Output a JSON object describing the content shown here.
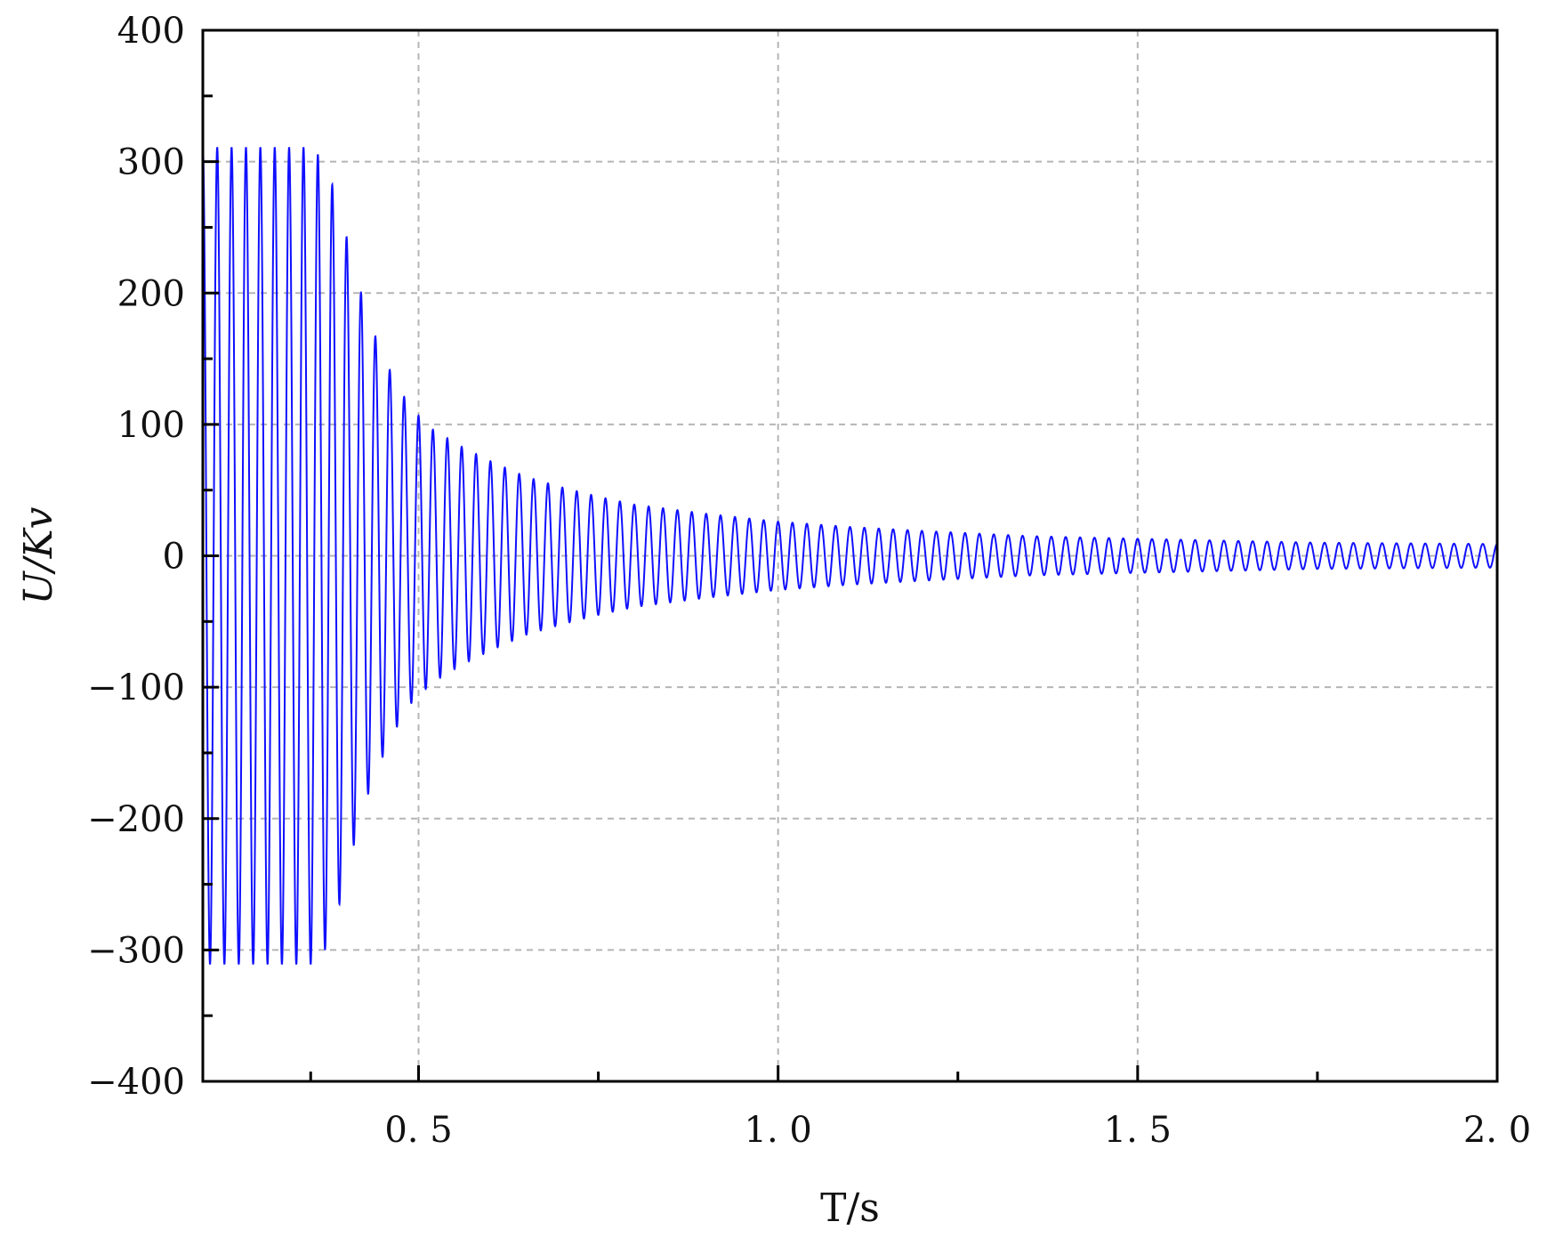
{
  "chart_data": {
    "type": "line",
    "title": "",
    "xlabel": "T/s",
    "ylabel": "U/Kv",
    "xlim": [
      0.2,
      2.0
    ],
    "ylim": [
      -400,
      400
    ],
    "grid": true,
    "colors": {
      "series": "#1010ff",
      "grid": "#b5b5b5",
      "axes": "#000000"
    },
    "x_ticks": [
      {
        "value": 0.5,
        "label": "0. 5"
      },
      {
        "value": 1.0,
        "label": "1. 0"
      },
      {
        "value": 1.5,
        "label": "1. 5"
      },
      {
        "value": 2.0,
        "label": "2. 0"
      }
    ],
    "x_minor_ticks": [
      0.35,
      0.75,
      1.25,
      1.75
    ],
    "y_ticks": [
      {
        "value": 400,
        "label": "400"
      },
      {
        "value": 300,
        "label": "300"
      },
      {
        "value": 200,
        "label": "200"
      },
      {
        "value": 100,
        "label": "100"
      },
      {
        "value": 0,
        "label": "0"
      },
      {
        "value": -100,
        "label": "−100"
      },
      {
        "value": -200,
        "label": "−200"
      },
      {
        "value": -300,
        "label": "−300"
      },
      {
        "value": -400,
        "label": "−400"
      }
    ],
    "y_minor_ticks": [
      350,
      250,
      150,
      50,
      -50,
      -150,
      -250,
      -350
    ],
    "series": [
      {
        "frequency_hz": 50,
        "peak_amplitude": 311,
        "steady_amplitude": 9,
        "envelope_points": [
          [
            0.2,
            311
          ],
          [
            0.35,
            311
          ],
          [
            0.37,
            300
          ],
          [
            0.39,
            265
          ],
          [
            0.41,
            220
          ],
          [
            0.43,
            181
          ],
          [
            0.45,
            153
          ],
          [
            0.47,
            130
          ],
          [
            0.49,
            112
          ],
          [
            0.52,
            96
          ],
          [
            0.56,
            83
          ],
          [
            0.6,
            72
          ],
          [
            0.65,
            60
          ],
          [
            0.7,
            52
          ],
          [
            0.75,
            45
          ],
          [
            0.8,
            39
          ],
          [
            0.9,
            32
          ],
          [
            1.0,
            26
          ],
          [
            1.1,
            22
          ],
          [
            1.2,
            19
          ],
          [
            1.35,
            15
          ],
          [
            1.5,
            13
          ],
          [
            1.75,
            10
          ],
          [
            2.0,
            9
          ]
        ]
      }
    ]
  }
}
